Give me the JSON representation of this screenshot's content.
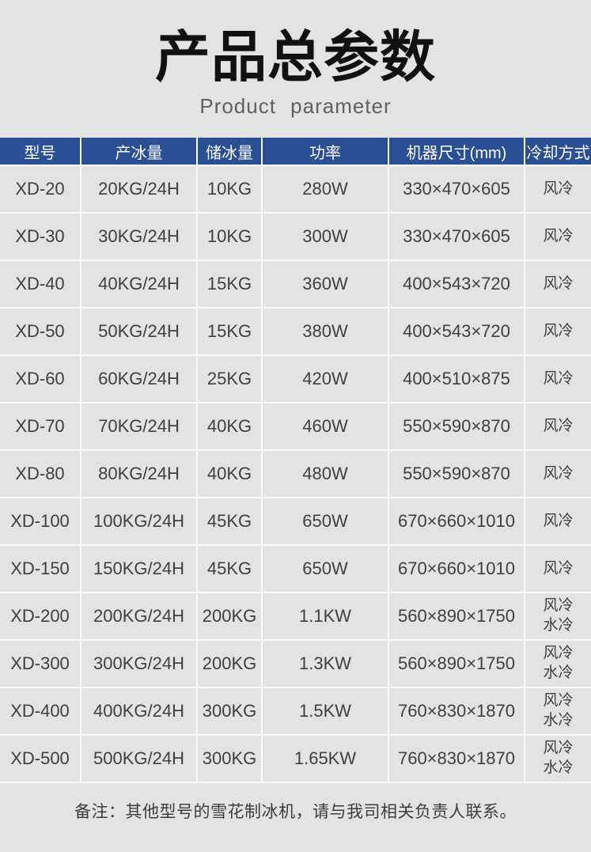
{
  "page": {
    "title": "产品总参数",
    "subtitle": "Product parameter",
    "note": "备注：其他型号的雪花制冰机，请与我司相关负责人联系。"
  },
  "colors": {
    "page_background": "#e3e3e3",
    "header_background": "#2a4f94",
    "header_text": "#ffffff",
    "cell_text": "#3f3f3f",
    "divider": "#fbfbfb"
  },
  "table": {
    "headers": [
      "型号",
      "产冰量",
      "储冰量",
      "功率",
      "机器尺寸(mm)",
      "冷却方式"
    ],
    "rows": [
      {
        "model": "XD-20",
        "production": "20KG/24H",
        "storage": "10KG",
        "power": "280W",
        "size": "330×470×605",
        "cooling": "风冷"
      },
      {
        "model": "XD-30",
        "production": "30KG/24H",
        "storage": "10KG",
        "power": "300W",
        "size": "330×470×605",
        "cooling": "风冷"
      },
      {
        "model": "XD-40",
        "production": "40KG/24H",
        "storage": "15KG",
        "power": "360W",
        "size": "400×543×720",
        "cooling": "风冷"
      },
      {
        "model": "XD-50",
        "production": "50KG/24H",
        "storage": "15KG",
        "power": "380W",
        "size": "400×543×720",
        "cooling": "风冷"
      },
      {
        "model": "XD-60",
        "production": "60KG/24H",
        "storage": "25KG",
        "power": "420W",
        "size": "400×510×875",
        "cooling": "风冷"
      },
      {
        "model": "XD-70",
        "production": "70KG/24H",
        "storage": "40KG",
        "power": "460W",
        "size": "550×590×870",
        "cooling": "风冷"
      },
      {
        "model": "XD-80",
        "production": "80KG/24H",
        "storage": "40KG",
        "power": "480W",
        "size": "550×590×870",
        "cooling": "风冷"
      },
      {
        "model": "XD-100",
        "production": "100KG/24H",
        "storage": "45KG",
        "power": "650W",
        "size": "670×660×1010",
        "cooling": "风冷"
      },
      {
        "model": "XD-150",
        "production": "150KG/24H",
        "storage": "45KG",
        "power": "650W",
        "size": "670×660×1010",
        "cooling": "风冷"
      },
      {
        "model": "XD-200",
        "production": "200KG/24H",
        "storage": "200KG",
        "power": "1.1KW",
        "size": "560×890×1750",
        "cooling": "风冷\n水冷"
      },
      {
        "model": "XD-300",
        "production": "300KG/24H",
        "storage": "200KG",
        "power": "1.3KW",
        "size": "560×890×1750",
        "cooling": "风冷\n水冷"
      },
      {
        "model": "XD-400",
        "production": "400KG/24H",
        "storage": "300KG",
        "power": "1.5KW",
        "size": "760×830×1870",
        "cooling": "风冷\n水冷"
      },
      {
        "model": "XD-500",
        "production": "500KG/24H",
        "storage": "300KG",
        "power": "1.65KW",
        "size": "760×830×1870",
        "cooling": "风冷\n水冷"
      }
    ]
  }
}
